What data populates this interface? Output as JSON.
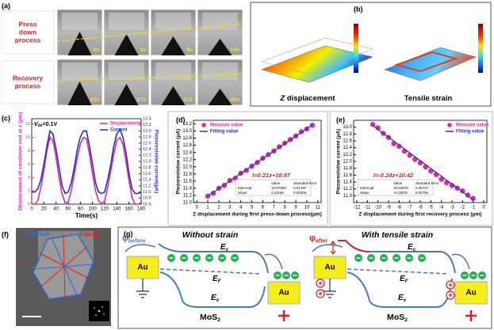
{
  "panel_labels": [
    "(a)",
    "(b)",
    "(c)",
    "(d)",
    "(e)",
    "(f)",
    "(g)"
  ],
  "panel_a": {
    "row_labels": [
      [
        "Press",
        "down",
        "process"
      ],
      [
        "Recovery",
        "process"
      ]
    ],
    "times": [
      [
        "0s",
        "3s",
        "9s",
        "14s"
      ],
      [
        "20s",
        "27s",
        "31s",
        "40s"
      ]
    ]
  },
  "panel_b": {
    "captions": [
      [
        "Z",
        " displacement"
      ],
      [
        "Tensile strain"
      ]
    ]
  },
  "panel_f": {
    "labels": [
      "Armchair",
      "Zigzag"
    ]
  },
  "panel_g": {
    "diagrams": [
      {
        "title": "Without strain",
        "phi": [
          "φ",
          "before"
        ],
        "bands": [
          [
            "E",
            "c"
          ],
          [
            "E",
            "F"
          ],
          [
            "E",
            "v"
          ]
        ],
        "electrodes": [
          "Au",
          "Au"
        ],
        "material": [
          "MoS",
          "2"
        ]
      },
      {
        "title": "With tensile strain",
        "phi": [
          "φ",
          "after"
        ],
        "bands": [
          [
            "E",
            "c"
          ],
          [
            "E",
            "F"
          ],
          [
            "E",
            "v"
          ]
        ],
        "electrodes": [
          "Au",
          "Au"
        ],
        "material": [
          "MoS",
          "2"
        ]
      }
    ]
  },
  "chart_data": [
    {
      "type": "line",
      "annotation": [
        "V",
        "ds",
        "=0.1V"
      ],
      "xlabel": "Time(s)",
      "ylabel": "Displacement of cantilever end at z (μm)",
      "y2label": "Piezoresistive current(μA)",
      "legend": "upper right",
      "x": [
        0,
        5,
        10,
        15,
        20,
        25,
        30,
        35,
        40,
        45,
        50,
        55,
        60,
        65,
        70,
        75,
        80,
        85,
        90,
        95,
        100,
        105,
        110,
        115,
        120,
        125,
        130,
        135,
        140,
        145,
        150,
        155,
        160,
        165,
        170,
        175,
        180
      ],
      "series": [
        {
          "name": "Displacement",
          "color": "#e8279a",
          "values": [
            0,
            0,
            0.5,
            2.5,
            5,
            8,
            10,
            9.5,
            7,
            4,
            1.5,
            0.2,
            0.3,
            2,
            4.5,
            7,
            9,
            10,
            9.8,
            7.5,
            4.5,
            2,
            0.5,
            0.1,
            0.5,
            2.5,
            5,
            7.5,
            9.5,
            10,
            9,
            6.5,
            3.5,
            1,
            0,
            0,
            0.2
          ]
        },
        {
          "name": "Current",
          "color": "#1f2fd6",
          "axis": "y2",
          "values": [
            11.0,
            11.0,
            11.1,
            11.4,
            11.9,
            12.5,
            13.0,
            12.9,
            12.4,
            11.8,
            11.2,
            10.95,
            11.0,
            11.3,
            11.8,
            12.4,
            12.8,
            13.0,
            13.0,
            12.5,
            11.9,
            11.3,
            11.0,
            10.95,
            11.0,
            11.4,
            11.9,
            12.5,
            12.9,
            13.05,
            12.8,
            12.3,
            11.6,
            11.1,
            10.95,
            10.95,
            11.0
          ]
        }
      ],
      "xlim": [
        0,
        180
      ],
      "xticks": [
        0,
        20,
        40,
        60,
        80,
        100,
        120,
        140,
        160,
        180
      ],
      "ylim": [
        0,
        12.8
      ],
      "yticks": [
        0,
        2,
        4,
        6,
        8,
        10,
        12
      ],
      "y2lim": [
        10.6,
        13.4
      ],
      "y2ticks": [
        10.6,
        10.8,
        {
          "value": 11,
          "label": "11.0"
        },
        11.2,
        11.4,
        11.6,
        11.8,
        {
          "value": 12,
          "label": "12.0"
        },
        12.2,
        12.4,
        12.6,
        12.8,
        {
          "value": 13,
          "label": "13.0"
        },
        13.2,
        13.4
      ]
    },
    {
      "type": "scatter",
      "equation": "I=0.21z+10.97",
      "xlabel": "Z displacement during first press-down process(μm)",
      "ylabel": "Piezoresistive current (μA)",
      "legend": "upper left",
      "fit_table": {
        "columns": [
          "Value",
          "Standard Error"
        ],
        "rows": [
          [
            "Intercept",
            "10.97003",
            "0.01787"
          ],
          [
            "Slope",
            "0.21166",
            "0.00326"
          ]
        ]
      },
      "x": [
        1,
        1.5,
        2,
        2.5,
        3,
        3.5,
        4,
        4.5,
        5,
        5.5,
        6,
        6.5,
        7,
        7.5,
        8,
        8.5,
        9,
        9.5,
        10,
        10.5
      ],
      "series": [
        {
          "name": "Measure value",
          "color": "#e8279a",
          "values": [
            11.18,
            11.26,
            11.4,
            11.48,
            11.62,
            11.68,
            11.82,
            11.9,
            12.02,
            12.12,
            12.24,
            12.34,
            12.44,
            12.56,
            12.66,
            12.76,
            12.86,
            12.98,
            13.06,
            13.16
          ]
        },
        {
          "name": "Fitting value",
          "color": "#1f2fd6",
          "mark": "line",
          "values": [
            11.18,
            11.285,
            11.39,
            11.495,
            11.6,
            11.705,
            11.81,
            11.915,
            12.02,
            12.125,
            12.23,
            12.335,
            12.44,
            12.545,
            12.65,
            12.755,
            12.86,
            12.965,
            13.07,
            13.175
          ]
        }
      ],
      "xlim": [
        -0.3,
        11.3
      ],
      "xticks": [
        0,
        1,
        2,
        3,
        4,
        5,
        6,
        7,
        8,
        9,
        10,
        11
      ],
      "ylim": [
        11.0,
        13.3
      ],
      "yticks": [
        {
          "value": 11,
          "label": "11.0"
        },
        11.2,
        11.4,
        11.6,
        11.8,
        {
          "value": 12,
          "label": "12.0"
        },
        12.2,
        12.4,
        12.6,
        12.8,
        {
          "value": 13,
          "label": "13.0"
        },
        13.2
      ]
    },
    {
      "type": "scatter",
      "equation": "I=-0.24z+10.42",
      "xlabel": "Z displacement during first recovery process (μm)",
      "ylabel": "Piezoresistive current (μA)",
      "legend": "upper right",
      "fit_table": {
        "columns": [
          "Value",
          "Standard Error"
        ],
        "rows": [
          [
            "Intercept",
            "10.42678",
            "0.05717"
          ],
          [
            "Slope",
            "-0.24075",
            "0.00784"
          ]
        ]
      },
      "x": [
        -10.5,
        -10,
        -9.5,
        -9,
        -8.5,
        -8,
        -7.5,
        -7,
        -6.5,
        -6,
        -5.5,
        -5,
        -4.5,
        -4,
        -3.5,
        -3,
        -2.5,
        -2,
        -1.5,
        -1
      ],
      "series": [
        {
          "name": "Measure value",
          "color": "#e8279a",
          "values": [
            13.08,
            12.98,
            12.82,
            12.7,
            12.52,
            12.44,
            12.3,
            12.18,
            12.06,
            11.96,
            11.84,
            11.72,
            11.62,
            11.48,
            11.38,
            11.3,
            11.22,
            11.14,
            11.02,
            10.92
          ]
        },
        {
          "name": "Fitting value",
          "color": "#1f2fd6",
          "mark": "line",
          "values": [
            13.05,
            12.94,
            12.82,
            12.71,
            12.59,
            12.48,
            12.37,
            12.25,
            12.14,
            12.02,
            11.91,
            11.8,
            11.68,
            11.57,
            11.45,
            11.34,
            11.23,
            11.11,
            11.0,
            10.88
          ]
        }
      ],
      "xlim": [
        -12.3,
        0.3
      ],
      "xticks": [
        -12,
        -11,
        -10,
        -9,
        -8,
        -7,
        -6,
        -5,
        -4,
        -3,
        -2,
        -1,
        0
      ],
      "ylim": [
        10.8,
        13.2
      ],
      "yticks": [
        {
          "value": 11,
          "label": "11.0"
        },
        11.2,
        11.4,
        11.6,
        11.8,
        {
          "value": 12,
          "label": "12.0"
        },
        12.2,
        12.4,
        12.6,
        12.8,
        {
          "value": 13,
          "label": "13.0"
        }
      ]
    }
  ]
}
